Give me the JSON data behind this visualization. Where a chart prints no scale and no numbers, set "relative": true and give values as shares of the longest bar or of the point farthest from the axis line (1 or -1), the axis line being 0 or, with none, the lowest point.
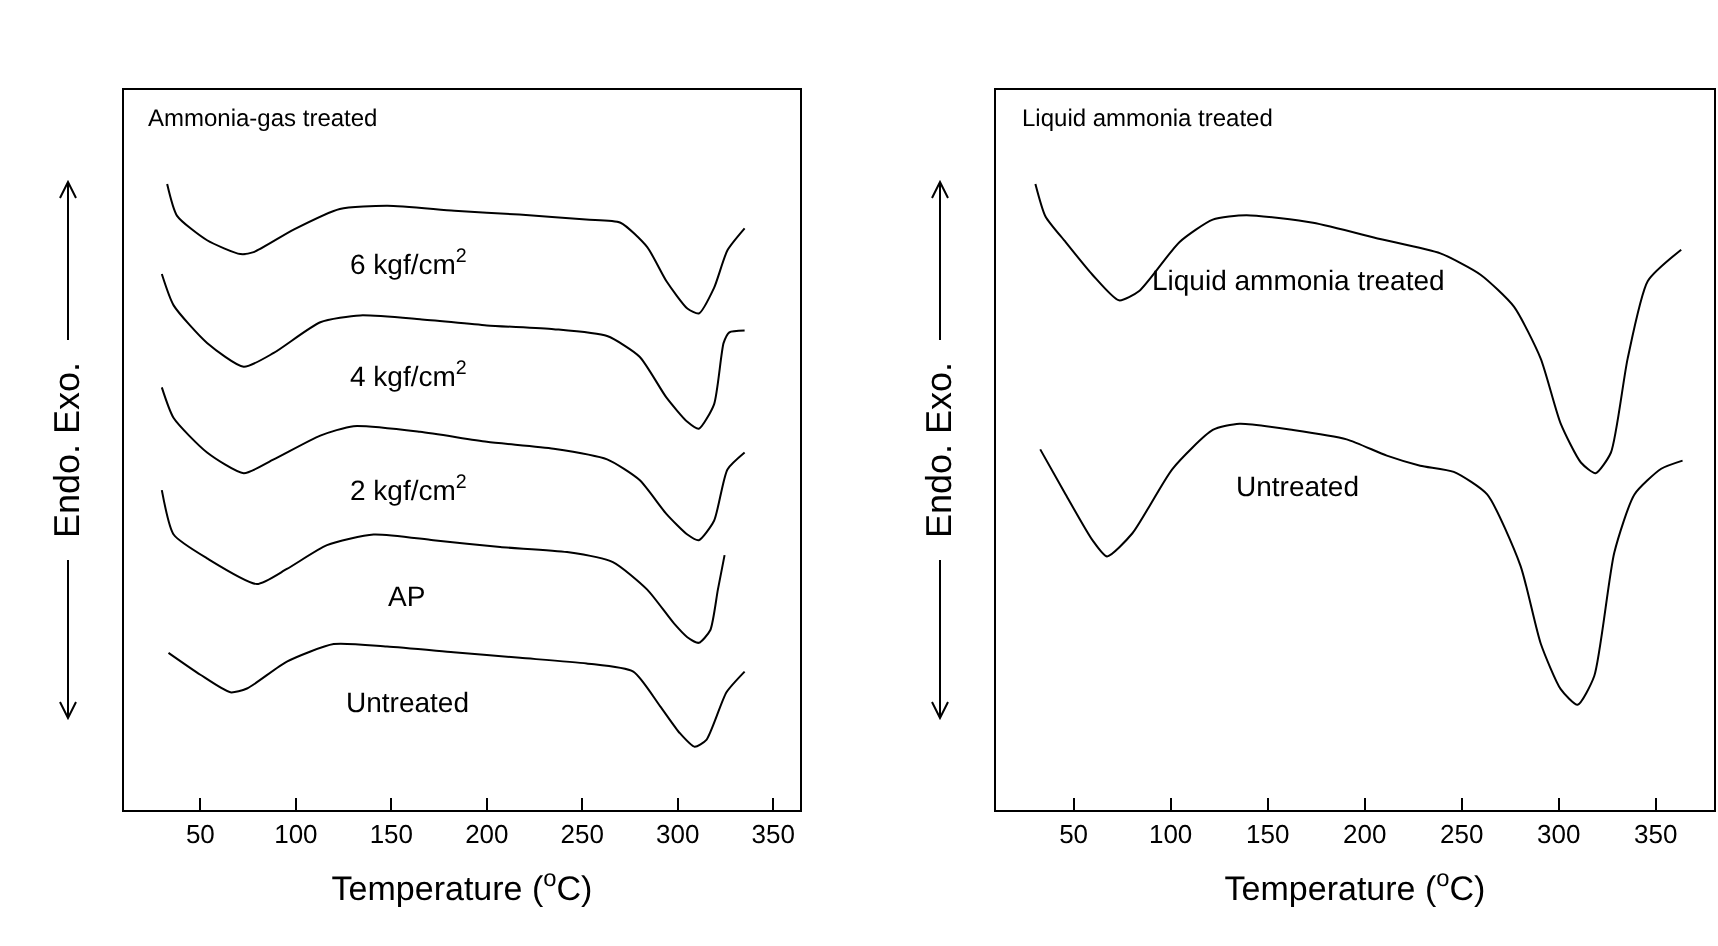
{
  "chart_data": [
    {
      "type": "line",
      "title": "Ammonia-gas treated",
      "xlabel": "Temperature ($^{o}$C)",
      "ylabel": "Endo. Exo.",
      "relative": true,
      "xlim": [
        10,
        364
      ],
      "xticks": [
        50,
        100,
        150,
        200,
        250,
        300,
        350
      ],
      "tick_labels": "x",
      "grid": false,
      "legend": false,
      "series": [
        {
          "name": "6 kgf/cm$^{2}$",
          "color": "#000000",
          "x": [
            32.6,
            37.8,
            53.5,
            70.9,
            77.9,
            98.8,
            123,
            148,
            183,
            217,
            252,
            270,
            284,
            294,
            305,
            311,
            319,
            326,
            335
          ],
          "values": [
            1.0,
            0.949,
            0.91,
            0.888,
            0.891,
            0.927,
            0.96,
            0.965,
            0.957,
            0.951,
            0.943,
            0.938,
            0.899,
            0.845,
            0.801,
            0.793,
            0.834,
            0.894,
            0.929
          ]
        },
        {
          "name": "4 kgf/cm$^{2}$",
          "color": "#000000",
          "x": [
            29.8,
            36,
            53.5,
            72.7,
            88.4,
            112.8,
            133.7,
            165,
            200,
            235,
            263,
            280,
            294,
            305,
            311,
            319,
            324,
            327,
            335
          ],
          "values": [
            0.856,
            0.806,
            0.746,
            0.708,
            0.73,
            0.779,
            0.79,
            0.784,
            0.774,
            0.768,
            0.757,
            0.724,
            0.659,
            0.62,
            0.609,
            0.648,
            0.746,
            0.763,
            0.766
          ]
        },
        {
          "name": "2 kgf/cm$^{2}$",
          "color": "#000000",
          "x": [
            29.8,
            36,
            53.5,
            72.7,
            88.4,
            112.8,
            130.2,
            165,
            200,
            235,
            263,
            280,
            294,
            305,
            311,
            319,
            326,
            335
          ],
          "values": [
            0.675,
            0.626,
            0.571,
            0.538,
            0.56,
            0.598,
            0.613,
            0.604,
            0.588,
            0.577,
            0.56,
            0.527,
            0.473,
            0.44,
            0.431,
            0.462,
            0.544,
            0.571
          ]
        },
        {
          "name": "AP",
          "color": "#000000",
          "x": [
            29.8,
            36,
            53.5,
            79.6,
            95.3,
            116.3,
            140.7,
            172,
            207,
            242,
            266,
            284,
            298,
            305,
            311,
            317,
            321,
            324.5
          ],
          "values": [
            0.511,
            0.44,
            0.402,
            0.361,
            0.385,
            0.423,
            0.44,
            0.431,
            0.42,
            0.412,
            0.396,
            0.352,
            0.298,
            0.276,
            0.267,
            0.287,
            0.352,
            0.407
          ]
        },
        {
          "name": "Untreated",
          "color": "#000000",
          "x": [
            33.3,
            50,
            65.7,
            74.4,
            95.3,
            119.8,
            147.7,
            182.5,
            217.4,
            252.3,
            276.7,
            290.7,
            301,
            308.8,
            315,
            325.5,
            335
          ],
          "values": [
            0.251,
            0.216,
            0.188,
            0.194,
            0.237,
            0.265,
            0.261,
            0.252,
            0.243,
            0.234,
            0.221,
            0.166,
            0.123,
            0.101,
            0.112,
            0.188,
            0.221
          ]
        }
      ]
    },
    {
      "type": "line",
      "title": "Liquid ammonia treated",
      "xlabel": "Temperature ($^{o}$C)",
      "ylabel": "Endo. Exo.",
      "relative": true,
      "xlim": [
        10,
        380
      ],
      "xticks": [
        50,
        100,
        150,
        200,
        250,
        300,
        350
      ],
      "tick_labels": "x",
      "grid": false,
      "legend": false,
      "series": [
        {
          "name": "Liquid ammonia treated",
          "color": "#000000",
          "x": [
            30.3,
            35.5,
            45.9,
            59.7,
            73.4,
            83.8,
            104.5,
            121.7,
            139,
            173.4,
            207.9,
            239,
            259.7,
            276.9,
            290.7,
            301,
            311.4,
            319,
            326.9,
            335.5,
            345.9,
            363.1
          ],
          "values": [
            1.0,
            0.948,
            0.907,
            0.855,
            0.814,
            0.829,
            0.907,
            0.943,
            0.95,
            0.938,
            0.912,
            0.889,
            0.855,
            0.804,
            0.721,
            0.617,
            0.555,
            0.538,
            0.571,
            0.721,
            0.845,
            0.895
          ]
        },
        {
          "name": "Untreated",
          "color": "#000000",
          "x": [
            32.8,
            45.9,
            59.7,
            67.2,
            80.3,
            101,
            121.7,
            135.5,
            163.1,
            190.7,
            211.4,
            228.6,
            245.9,
            263.1,
            280.3,
            290.7,
            301,
            309.7,
            318.3,
            328.6,
            339,
            352.8,
            363.8
          ],
          "values": [
            0.576,
            0.504,
            0.431,
            0.405,
            0.442,
            0.545,
            0.607,
            0.617,
            0.607,
            0.592,
            0.566,
            0.55,
            0.54,
            0.504,
            0.39,
            0.266,
            0.193,
            0.168,
            0.214,
            0.411,
            0.504,
            0.545,
            0.558
          ]
        }
      ]
    }
  ]
}
